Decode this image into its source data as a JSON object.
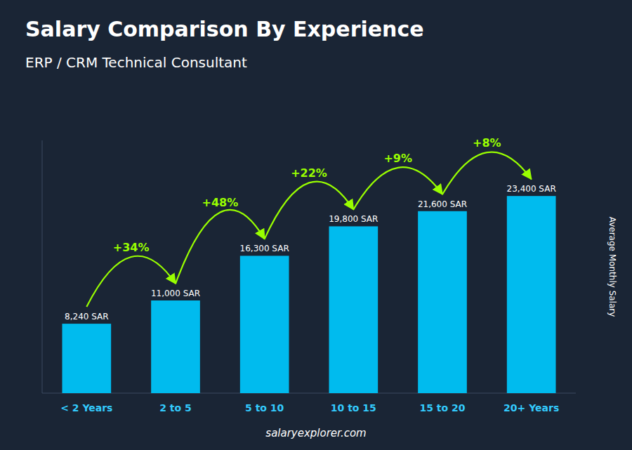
{
  "chart_data": {
    "type": "bar",
    "title": "Salary Comparison By Experience",
    "subtitle": "ERP / CRM Technical Consultant",
    "ylabel": "Average Monthly Salary",
    "categories": [
      "< 2 Years",
      "2 to 5",
      "5 to 10",
      "10 to 15",
      "15 to 20",
      "20+ Years"
    ],
    "values": [
      8240,
      11000,
      16300,
      19800,
      21600,
      23400
    ],
    "value_labels": [
      "8,240 SAR",
      "11,000 SAR",
      "16,300 SAR",
      "19,800 SAR",
      "21,600 SAR",
      "23,400 SAR"
    ],
    "data_labels": true,
    "annotations": [
      "+34%",
      "+48%",
      "+22%",
      "+9%",
      "+8%"
    ],
    "footer": "salaryexplorer.com",
    "color": "#00bbee",
    "ylim": [
      0,
      30000
    ],
    "tick_labels": "x",
    "grid": false
  }
}
